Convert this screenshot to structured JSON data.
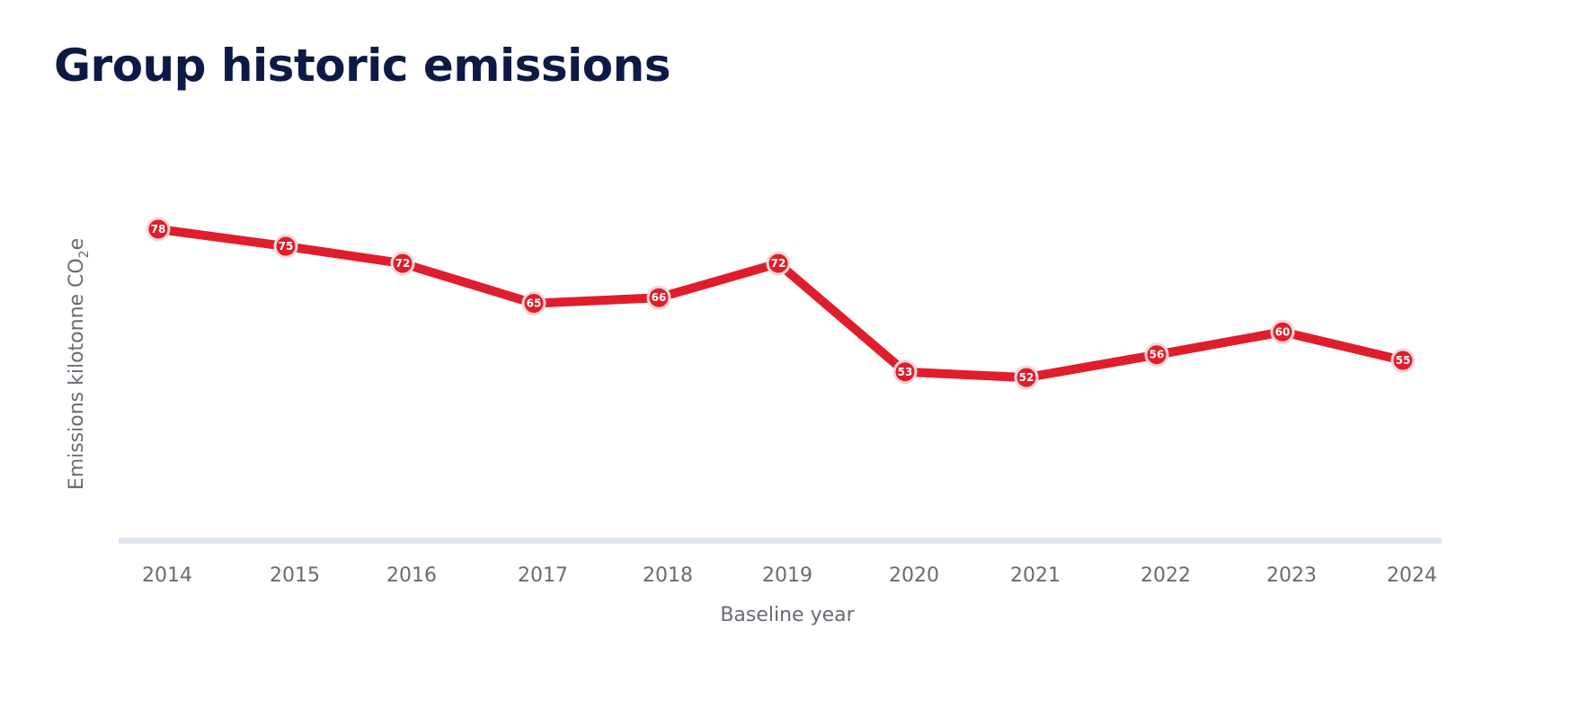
{
  "page": {
    "title": "Group historic emissions"
  },
  "colors": {
    "line": "#e01e2b",
    "title": "#0d1a45",
    "axis": "#e1e5ef",
    "text": "#666b75",
    "marker_outline": "#f3d6d8"
  },
  "chart_data": {
    "type": "line",
    "title": "Group historic emissions",
    "xlabel": "Baseline year",
    "ylabel_main": "Emissions kilotonne CO",
    "ylabel_sub": "2",
    "ylabel_end": "e",
    "categories": [
      "2014",
      "2015",
      "2016",
      "2017",
      "2018",
      "2019",
      "2020",
      "2021",
      "2022",
      "2023",
      "2024"
    ],
    "series": [
      {
        "name": "Emissions kilotonne CO2e",
        "values": [
          78,
          75,
          72,
          65,
          66,
          72,
          53,
          52,
          56,
          60,
          55
        ]
      }
    ],
    "ylim": [
      0,
      100
    ],
    "grid": false,
    "legend": "none"
  }
}
